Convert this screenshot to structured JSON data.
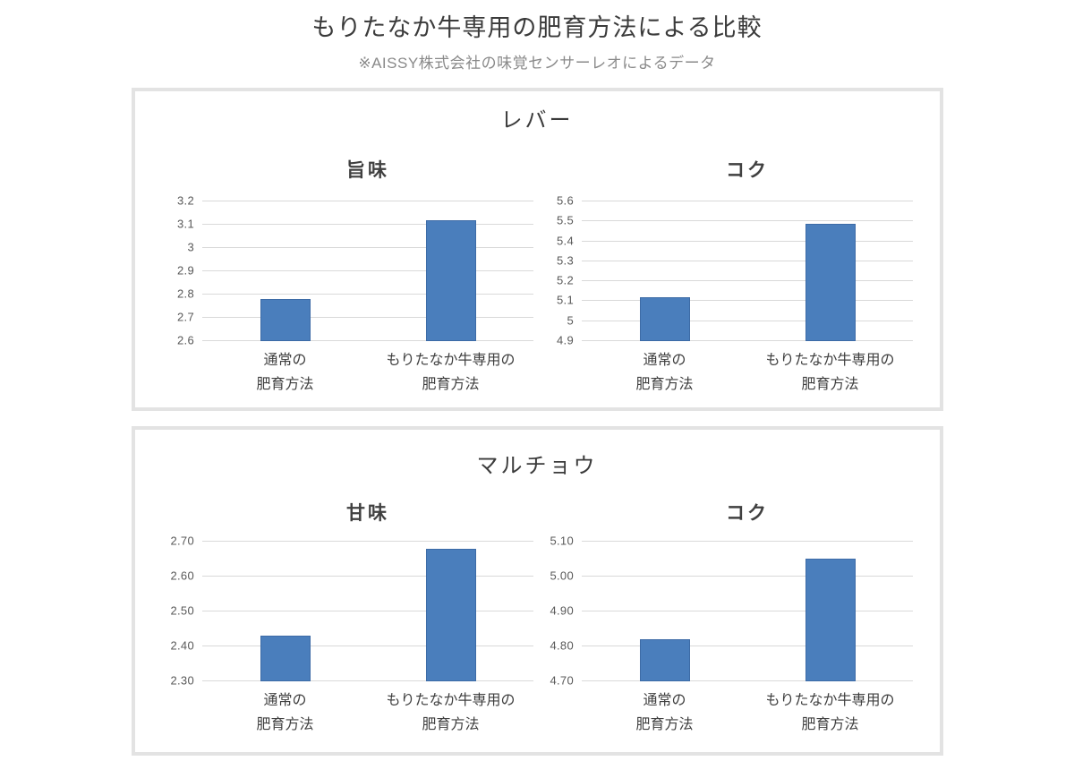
{
  "header": {
    "title": "もりたなか牛専用の肥育方法による比較",
    "subtitle": "※AISSY株式会社の味覚センサーレオによるデータ"
  },
  "panels": [
    {
      "title": "レバー"
    },
    {
      "title": "マルチョウ"
    }
  ],
  "colors": {
    "bar_fill": "#4a7ebc",
    "bar_border": "#3d6ba6",
    "gridline": "#d9d9d9",
    "panel_border": "#e3e3e3",
    "title_text": "#3b3b3b",
    "subtitle_text": "#8a8a8a",
    "tick_text": "#595959"
  },
  "chart_data": [
    {
      "type": "bar",
      "group": "レバー",
      "title": "旨味",
      "categories": [
        [
          "通常の",
          "肥育方法"
        ],
        [
          "もりたなか牛専用の",
          "肥育方法"
        ]
      ],
      "values": [
        2.78,
        3.12
      ],
      "ylim": [
        2.6,
        3.2
      ],
      "yticks": [
        "3.2",
        "3.1",
        "3",
        "2.9",
        "2.8",
        "2.7",
        "2.6"
      ],
      "grid": true,
      "legend": "none"
    },
    {
      "type": "bar",
      "group": "レバー",
      "title": "コク",
      "categories": [
        [
          "通常の",
          "肥育方法"
        ],
        [
          "もりたなか牛専用の",
          "肥育方法"
        ]
      ],
      "values": [
        5.12,
        5.49
      ],
      "ylim": [
        4.9,
        5.6
      ],
      "yticks": [
        "5.6",
        "5.5",
        "5.4",
        "5.3",
        "5.2",
        "5.1",
        "5",
        "4.9"
      ],
      "grid": true,
      "legend": "none"
    },
    {
      "type": "bar",
      "group": "マルチョウ",
      "title": "甘味",
      "categories": [
        [
          "通常の",
          "肥育方法"
        ],
        [
          "もりたなか牛専用の",
          "肥育方法"
        ]
      ],
      "values": [
        2.43,
        2.68
      ],
      "ylim": [
        2.3,
        2.7
      ],
      "yticks": [
        "2.70",
        "2.60",
        "2.50",
        "2.40",
        "2.30"
      ],
      "grid": true,
      "legend": "none"
    },
    {
      "type": "bar",
      "group": "マルチョウ",
      "title": "コク",
      "categories": [
        [
          "通常の",
          "肥育方法"
        ],
        [
          "もりたなか牛専用の",
          "肥育方法"
        ]
      ],
      "values": [
        4.82,
        5.05
      ],
      "ylim": [
        4.7,
        5.1
      ],
      "yticks": [
        "5.10",
        "5.00",
        "4.90",
        "4.80",
        "4.70"
      ],
      "grid": true,
      "legend": "none"
    }
  ]
}
